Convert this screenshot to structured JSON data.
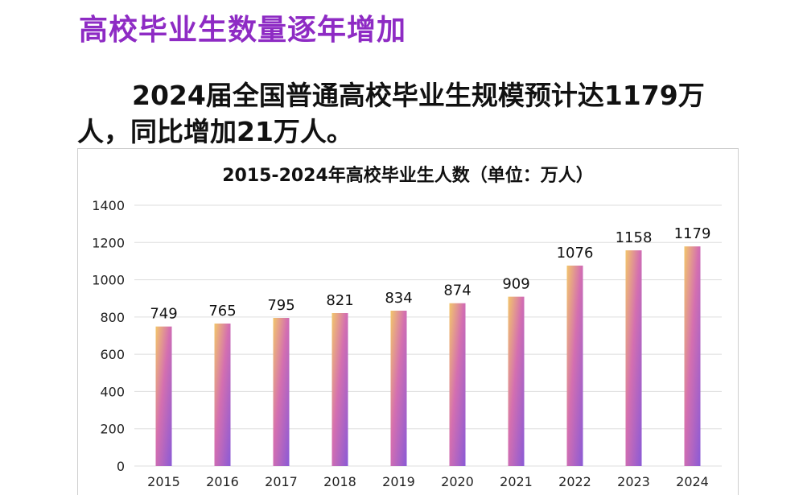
{
  "page": {
    "heading": "高校毕业生数量逐年增加",
    "paragraph": "2024届全国普通高校毕业生规模预计达1179万人，同比增加21万人。"
  },
  "chart_data": {
    "type": "bar",
    "title": "2015-2024年高校毕业生人数（单位：万人）",
    "categories": [
      "2015",
      "2016",
      "2017",
      "2018",
      "2019",
      "2020",
      "2021",
      "2022",
      "2023",
      "2024"
    ],
    "values": [
      749,
      765,
      795,
      821,
      834,
      874,
      909,
      1076,
      1158,
      1179
    ],
    "ylim": [
      0,
      1400
    ],
    "yticks": [
      0,
      200,
      400,
      600,
      800,
      1000,
      1200,
      1400
    ],
    "grid": true,
    "xlabel": "",
    "ylabel": "",
    "colors": {
      "bar_top": "#f2c66b",
      "bar_mid": "#d46fb0",
      "bar_bottom": "#8a5ad6",
      "grid": "#dddddd"
    }
  }
}
